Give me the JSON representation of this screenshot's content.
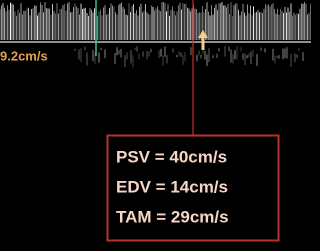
{
  "scale_label": "9.2cm/s",
  "measurements": [
    "PSV = 40cm/s",
    "EDV = 14cm/s",
    "TAM = 29cm/s"
  ]
}
